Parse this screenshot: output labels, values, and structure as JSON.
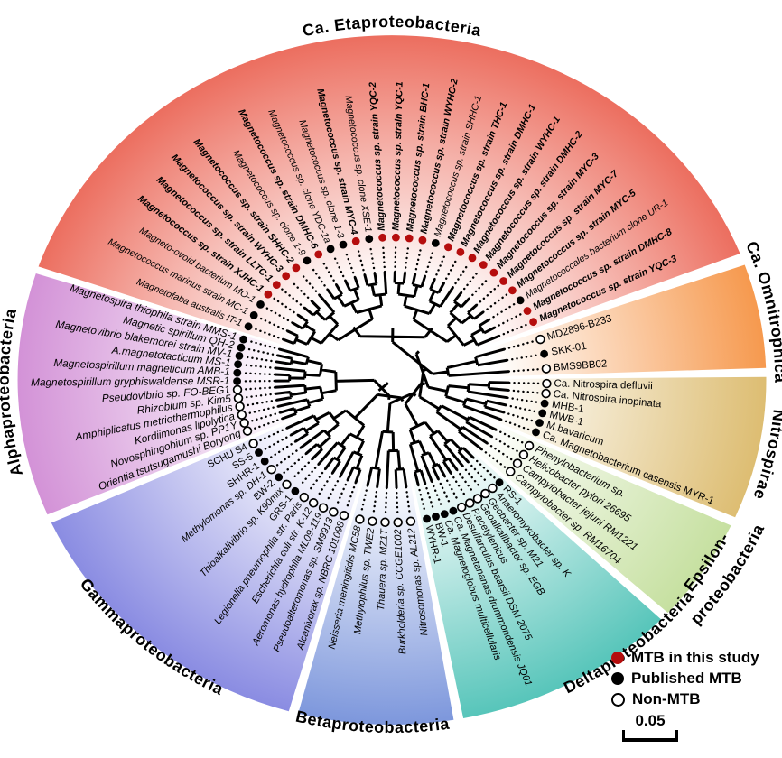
{
  "figure": {
    "kind": "circular phylogenetic tree of magnetotactic bacteria"
  },
  "colors": {
    "study_red": "#b50d0d",
    "published_black": "#000000",
    "eta": "#ec6e5f",
    "omni": "#f6994e",
    "nitro": "#ddbd72",
    "eps": "#c6e0a0",
    "delta": "#57c5ba",
    "beta": "#7d97dc",
    "gamma": "#8a8ce2",
    "alpha": "#d392d7"
  },
  "legend": {
    "items": [
      {
        "marker": "red",
        "label": "MTB in this study"
      },
      {
        "marker": "black",
        "label": "Published MTB"
      },
      {
        "marker": "open",
        "label": "Non-MTB"
      }
    ],
    "scale_label": "0.05"
  },
  "sectors": [
    {
      "id": "eta",
      "label": "Ca. Etaproteobacteria",
      "label2": "",
      "taxa": [
        {
          "name": "Magnetofaba australis IT-1",
          "marker": "black",
          "style": "i"
        },
        {
          "name": "Magnetococcus marinus strain MC-1",
          "marker": "black",
          "style": "i"
        },
        {
          "name": "Magneto-ovoid bacterium MO-1",
          "marker": "black",
          "style": "i"
        },
        {
          "name": "Magnetococcus sp. strain XJHC-1",
          "marker": "red",
          "style": "bi"
        },
        {
          "name": "Magnetococcus sp. strain LLTC-1",
          "marker": "red",
          "style": "bi"
        },
        {
          "name": "Magnetococcus sp. strain WYHC-3",
          "marker": "red",
          "style": "bi"
        },
        {
          "name": "Magnetococcus sp. strain SHHC-2",
          "marker": "red",
          "style": "bi"
        },
        {
          "name": "Magnetococcus sp. clone 1-9",
          "marker": "black",
          "style": "i"
        },
        {
          "name": "Magnetococcus sp. strain DMHC-6",
          "marker": "red",
          "style": "bi"
        },
        {
          "name": "Magnetococcus sp. clone YDC-1a",
          "marker": "black",
          "style": "i"
        },
        {
          "name": "Magnetococcus sp. clone 1-3",
          "marker": "black",
          "style": "i"
        },
        {
          "name": "Magnetococcus sp. strain MYC-4",
          "marker": "red",
          "style": "bi"
        },
        {
          "name": "Magnetococcus sp. clone XSE-1",
          "marker": "black",
          "style": "i"
        },
        {
          "name": "Magnetococcus sp. strain YQC-2",
          "marker": "red",
          "style": "bi"
        },
        {
          "name": "Magnetococcus sp. strain YQC-1",
          "marker": "red",
          "style": "bi"
        },
        {
          "name": "Magnetococcus sp. strain BHC-1",
          "marker": "red",
          "style": "bi"
        },
        {
          "name": "Magnetococcus sp. strain WYHC-2",
          "marker": "red",
          "style": "bi"
        },
        {
          "name": "Magnetococcus sp. strain SHHC-1",
          "marker": "black",
          "style": "i"
        },
        {
          "name": "Magnetococcus sp. strain THC-1",
          "marker": "red",
          "style": "bi"
        },
        {
          "name": "Magnetococcus sp. strain DMHC-1",
          "marker": "red",
          "style": "bi"
        },
        {
          "name": "Magnetococcus sp. strain WYHC-1",
          "marker": "red",
          "style": "bi"
        },
        {
          "name": "Magnetococcus sp. strain DMHC-2",
          "marker": "red",
          "style": "bi"
        },
        {
          "name": "Magnetococcus sp. strain MYC-3",
          "marker": "red",
          "style": "bi"
        },
        {
          "name": "Magnetococcus sp. strain MYC-7",
          "marker": "red",
          "style": "bi"
        },
        {
          "name": "Magnetococcus sp. strain MYC-5",
          "marker": "red",
          "style": "bi"
        },
        {
          "name": "Magnetococcales bacterium clone UR-1",
          "marker": "black",
          "style": "i"
        },
        {
          "name": "Magnetococcus sp. strain DMHC-8",
          "marker": "red",
          "style": "bi"
        },
        {
          "name": "Magnetococcus sp. strain YQC-3",
          "marker": "red",
          "style": "bi"
        }
      ]
    },
    {
      "id": "omni",
      "label": "Ca. Omnitrophica",
      "label2": "",
      "taxa": [
        {
          "name": "MD2896-B233",
          "marker": "open",
          "style": "r"
        },
        {
          "name": "SKK-01",
          "marker": "black",
          "style": "r"
        },
        {
          "name": "BMS9BB02",
          "marker": "open",
          "style": "r"
        }
      ]
    },
    {
      "id": "nitro",
      "label": "Nitrospirae",
      "label2": "",
      "taxa": [
        {
          "name": "Ca. Nitrospira defluvii",
          "marker": "open",
          "style": "r"
        },
        {
          "name": "Ca. Nitrospira inopinata",
          "marker": "open",
          "style": "r"
        },
        {
          "name": "MHB-1",
          "marker": "black",
          "style": "r"
        },
        {
          "name": "MWB-1",
          "marker": "black",
          "style": "r"
        },
        {
          "name": "M.bavaricum",
          "marker": "black",
          "style": "r"
        },
        {
          "name": "Ca. Magnetobacterium casensis MYR-1",
          "marker": "black",
          "style": "r"
        }
      ]
    },
    {
      "id": "eps",
      "label": "Epsilon-",
      "label2": "proteobacteria",
      "taxa": [
        {
          "name": "Phenylobacterium sp.",
          "marker": "open",
          "style": "i"
        },
        {
          "name": "Helicobacter pylori 26695",
          "marker": "open",
          "style": "i"
        },
        {
          "name": "Campylobacter jejuni RM1221",
          "marker": "open",
          "style": "i"
        },
        {
          "name": "Campylobacter sp. RM16704",
          "marker": "open",
          "style": "i"
        }
      ]
    },
    {
      "id": "delta",
      "label": "Deltaproteobacteria",
      "label2": "",
      "taxa": [
        {
          "name": "RS-1",
          "marker": "black",
          "style": "r"
        },
        {
          "name": "Anaeromyxobacter sp. K",
          "marker": "open",
          "style": "i"
        },
        {
          "name": "Geobacter sp. M21",
          "marker": "open",
          "style": "i"
        },
        {
          "name": "Geoalkalibacter sp. EGB",
          "marker": "open",
          "style": "i"
        },
        {
          "name": "P.acetylenicus",
          "marker": "open",
          "style": "i"
        },
        {
          "name": "Desulfarculus baarsii DSM 2075",
          "marker": "open",
          "style": "i"
        },
        {
          "name": "Ca. Magnetananas drummondensis JQ01",
          "marker": "black",
          "style": "i"
        },
        {
          "name": "Ca. Magnetoglobus multicellularis",
          "marker": "black",
          "style": "i"
        },
        {
          "name": "BW-1",
          "marker": "black",
          "style": "r"
        },
        {
          "name": "WYHR-1",
          "marker": "black",
          "style": "r"
        }
      ]
    },
    {
      "id": "beta",
      "label": "Betaproteobacteria",
      "label2": "",
      "taxa": [
        {
          "name": "Nitrosomonas sp. AL212",
          "marker": "open",
          "style": "i"
        },
        {
          "name": "Burkholderia sp. CCGE1002",
          "marker": "open",
          "style": "i"
        },
        {
          "name": "Thauera sp. MZ1T",
          "marker": "open",
          "style": "i"
        },
        {
          "name": "Methylophilus sp. TWE2",
          "marker": "open",
          "style": "i"
        },
        {
          "name": "Neisseria meningitidis MC58",
          "marker": "open",
          "style": "i"
        }
      ]
    },
    {
      "id": "gamma",
      "label": "Gammaproteobacteria",
      "label2": "",
      "taxa": [
        {
          "name": "Alcanivorax sp. NBRC 101098",
          "marker": "open",
          "style": "i"
        },
        {
          "name": "Pseudoalteromonas sp. SM9913",
          "marker": "open",
          "style": "i"
        },
        {
          "name": "Aeromonas hydrophila ML09-119",
          "marker": "open",
          "style": "i"
        },
        {
          "name": "Escherichia coli str. K-12",
          "marker": "open",
          "style": "i"
        },
        {
          "name": "Legionella pneumophila str. Paris",
          "marker": "open",
          "style": "i"
        },
        {
          "name": "GRS-1",
          "marker": "black",
          "style": "r"
        },
        {
          "name": "Thioalkalivibrio sp. K90mix",
          "marker": "open",
          "style": "i"
        },
        {
          "name": "BW-2",
          "marker": "black",
          "style": "r"
        },
        {
          "name": "Methylomonas sp. DH-1",
          "marker": "open",
          "style": "i"
        },
        {
          "name": "SHHR-1",
          "marker": "black",
          "style": "r"
        },
        {
          "name": "SS-5",
          "marker": "black",
          "style": "r"
        },
        {
          "name": "SCHU S4",
          "marker": "open",
          "style": "r"
        }
      ]
    },
    {
      "id": "alpha",
      "label": "Alphaproteobacteria",
      "label2": "",
      "taxa": [
        {
          "name": "Orientia tsutsugamushi Boryong",
          "marker": "open",
          "style": "i"
        },
        {
          "name": "Novosphingobium sp. PP1Y",
          "marker": "open",
          "style": "i"
        },
        {
          "name": "Kordiimonas lipolytica",
          "marker": "open",
          "style": "i"
        },
        {
          "name": "Amphiplicatus metriothermophilus",
          "marker": "open",
          "style": "i"
        },
        {
          "name": "Rhizobium sp. Kim5",
          "marker": "open",
          "style": "i"
        },
        {
          "name": "Pseudovibrio sp. FO-BEG1",
          "marker": "open",
          "style": "i"
        },
        {
          "name": "Magnetospirillum gryphiswaldense MSR-1",
          "marker": "black",
          "style": "i"
        },
        {
          "name": "Magnetospirillum magneticum AMB-1",
          "marker": "black",
          "style": "i"
        },
        {
          "name": "A.magnetotacticum MS-1",
          "marker": "black",
          "style": "i"
        },
        {
          "name": "Magnetovibrio blakemorei strain MV-1",
          "marker": "black",
          "style": "i"
        },
        {
          "name": "Magnetic spirillum QH-2",
          "marker": "black",
          "style": "i"
        },
        {
          "name": "Magnetospira thiophila strain MMS-1",
          "marker": "black",
          "style": "i"
        }
      ]
    }
  ]
}
